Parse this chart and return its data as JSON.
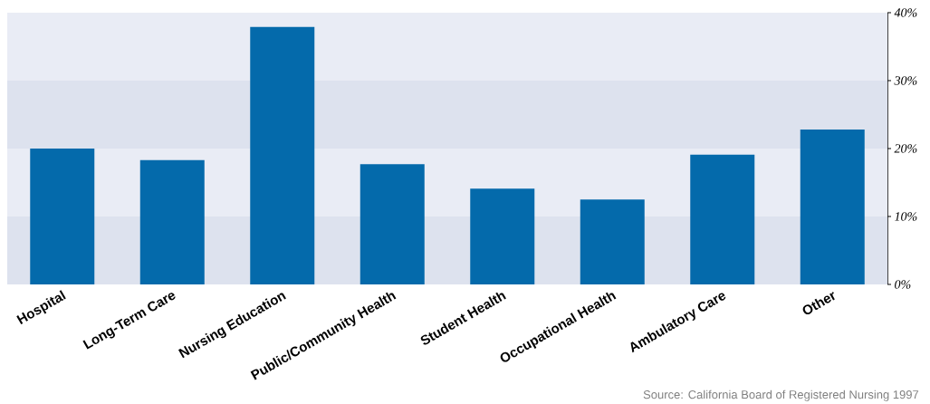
{
  "chart_data": {
    "type": "bar",
    "categories": [
      "Hospital",
      "Long-Term Care",
      "Nursing Education",
      "Public/Community Health",
      "Student Health",
      "Occupational Health",
      "Ambulatory Care",
      "Other"
    ],
    "values": [
      20.0,
      18.3,
      37.9,
      17.7,
      14.1,
      12.5,
      19.1,
      22.8
    ],
    "color": "#046aab",
    "ylim": [
      0,
      40
    ],
    "yticks": [
      {
        "value": 0,
        "label": "0%"
      },
      {
        "value": 10,
        "label": "10%"
      },
      {
        "value": 20,
        "label": "20%"
      },
      {
        "value": 30,
        "label": "30%"
      },
      {
        "value": 40,
        "label": "40%"
      }
    ],
    "bands": [
      {
        "axis": "y",
        "from": 0,
        "to": 10,
        "color": "#dde2ee"
      },
      {
        "axis": "y",
        "from": 10,
        "to": 20,
        "color": "#e9ecf5"
      },
      {
        "axis": "y",
        "from": 20,
        "to": 30,
        "color": "#dde2ee"
      },
      {
        "axis": "y",
        "from": 30,
        "to": 40,
        "color": "#e9ecf5"
      }
    ],
    "annotations": [
      "Source: California Board of Registered Nursing 1997"
    ]
  }
}
